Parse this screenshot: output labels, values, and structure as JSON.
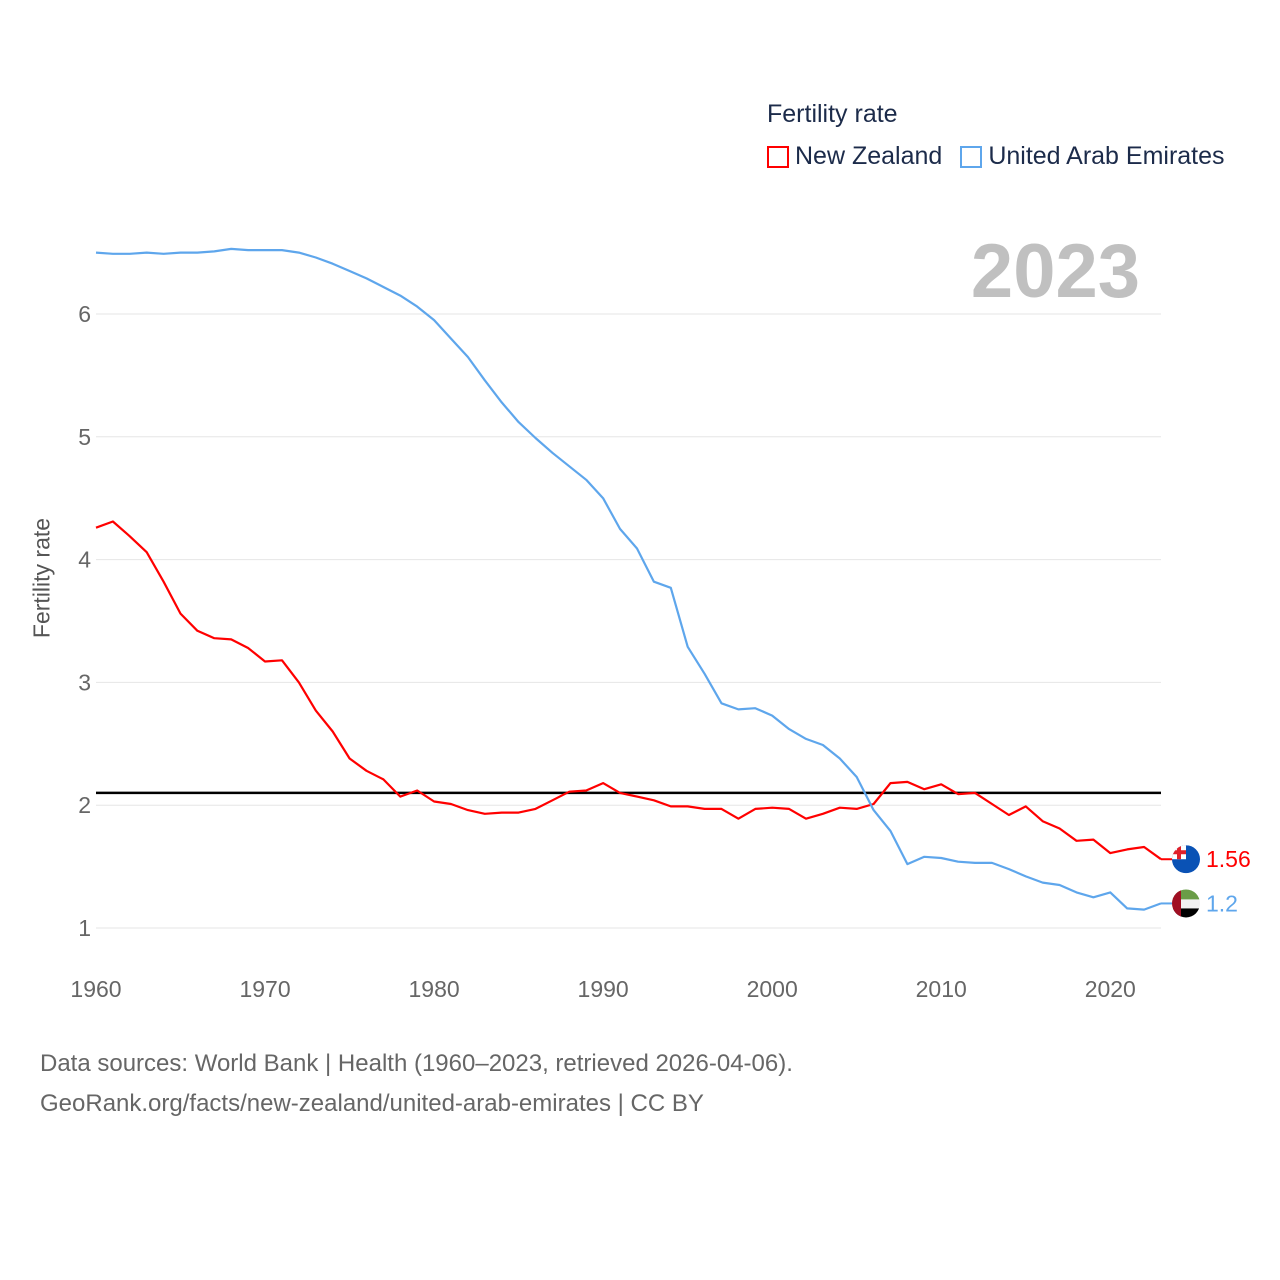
{
  "chart_data": {
    "type": "line",
    "title": "Fertility rate",
    "year_label": "2023",
    "xlabel": "",
    "ylabel": "Fertility rate",
    "xlim": [
      1960,
      2023
    ],
    "ylim": [
      0.7,
      6.7
    ],
    "x_ticks": [
      1960,
      1970,
      1980,
      1990,
      2000,
      2010,
      2020
    ],
    "y_ticks": [
      1,
      2,
      3,
      4,
      5,
      6
    ],
    "grid": true,
    "legend_position": "top-right",
    "reference_line": 2.1,
    "x": [
      1960,
      1961,
      1962,
      1963,
      1964,
      1965,
      1966,
      1967,
      1968,
      1969,
      1970,
      1971,
      1972,
      1973,
      1974,
      1975,
      1976,
      1977,
      1978,
      1979,
      1980,
      1981,
      1982,
      1983,
      1984,
      1985,
      1986,
      1987,
      1988,
      1989,
      1990,
      1991,
      1992,
      1993,
      1994,
      1995,
      1996,
      1997,
      1998,
      1999,
      2000,
      2001,
      2002,
      2003,
      2004,
      2005,
      2006,
      2007,
      2008,
      2009,
      2010,
      2011,
      2012,
      2013,
      2014,
      2015,
      2016,
      2017,
      2018,
      2019,
      2020,
      2021,
      2022,
      2023
    ],
    "series": [
      {
        "name": "New Zealand",
        "color": "#ff0000",
        "end_label": "1.56",
        "values": [
          4.26,
          4.31,
          4.19,
          4.06,
          3.82,
          3.56,
          3.42,
          3.36,
          3.35,
          3.28,
          3.17,
          3.18,
          3.0,
          2.77,
          2.6,
          2.38,
          2.28,
          2.21,
          2.07,
          2.12,
          2.03,
          2.01,
          1.96,
          1.93,
          1.94,
          1.94,
          1.97,
          2.04,
          2.11,
          2.12,
          2.18,
          2.1,
          2.07,
          2.04,
          1.99,
          1.99,
          1.97,
          1.97,
          1.89,
          1.97,
          1.98,
          1.97,
          1.89,
          1.93,
          1.98,
          1.97,
          2.01,
          2.18,
          2.19,
          2.13,
          2.17,
          2.09,
          2.1,
          2.01,
          1.92,
          1.99,
          1.87,
          1.81,
          1.71,
          1.72,
          1.61,
          1.64,
          1.66,
          1.56
        ]
      },
      {
        "name": "United Arab Emirates",
        "color": "#5ea6ec",
        "end_label": "1.2",
        "values": [
          6.5,
          6.49,
          6.49,
          6.5,
          6.49,
          6.5,
          6.5,
          6.51,
          6.53,
          6.52,
          6.52,
          6.52,
          6.5,
          6.46,
          6.41,
          6.35,
          6.29,
          6.22,
          6.15,
          6.06,
          5.95,
          5.8,
          5.65,
          5.46,
          5.28,
          5.12,
          4.99,
          4.87,
          4.76,
          4.65,
          4.5,
          4.25,
          4.09,
          3.82,
          3.77,
          3.29,
          3.07,
          2.83,
          2.78,
          2.79,
          2.73,
          2.62,
          2.54,
          2.49,
          2.38,
          2.23,
          1.96,
          1.79,
          1.52,
          1.58,
          1.57,
          1.54,
          1.53,
          1.53,
          1.48,
          1.42,
          1.37,
          1.35,
          1.29,
          1.25,
          1.29,
          1.16,
          1.15,
          1.2
        ]
      }
    ]
  },
  "footer": {
    "line1": "Data sources: World Bank | Health (1960–2023, retrieved 2026-04-06).",
    "line2": "GeoRank.org/facts/new-zealand/united-arab-emirates | CC BY"
  }
}
